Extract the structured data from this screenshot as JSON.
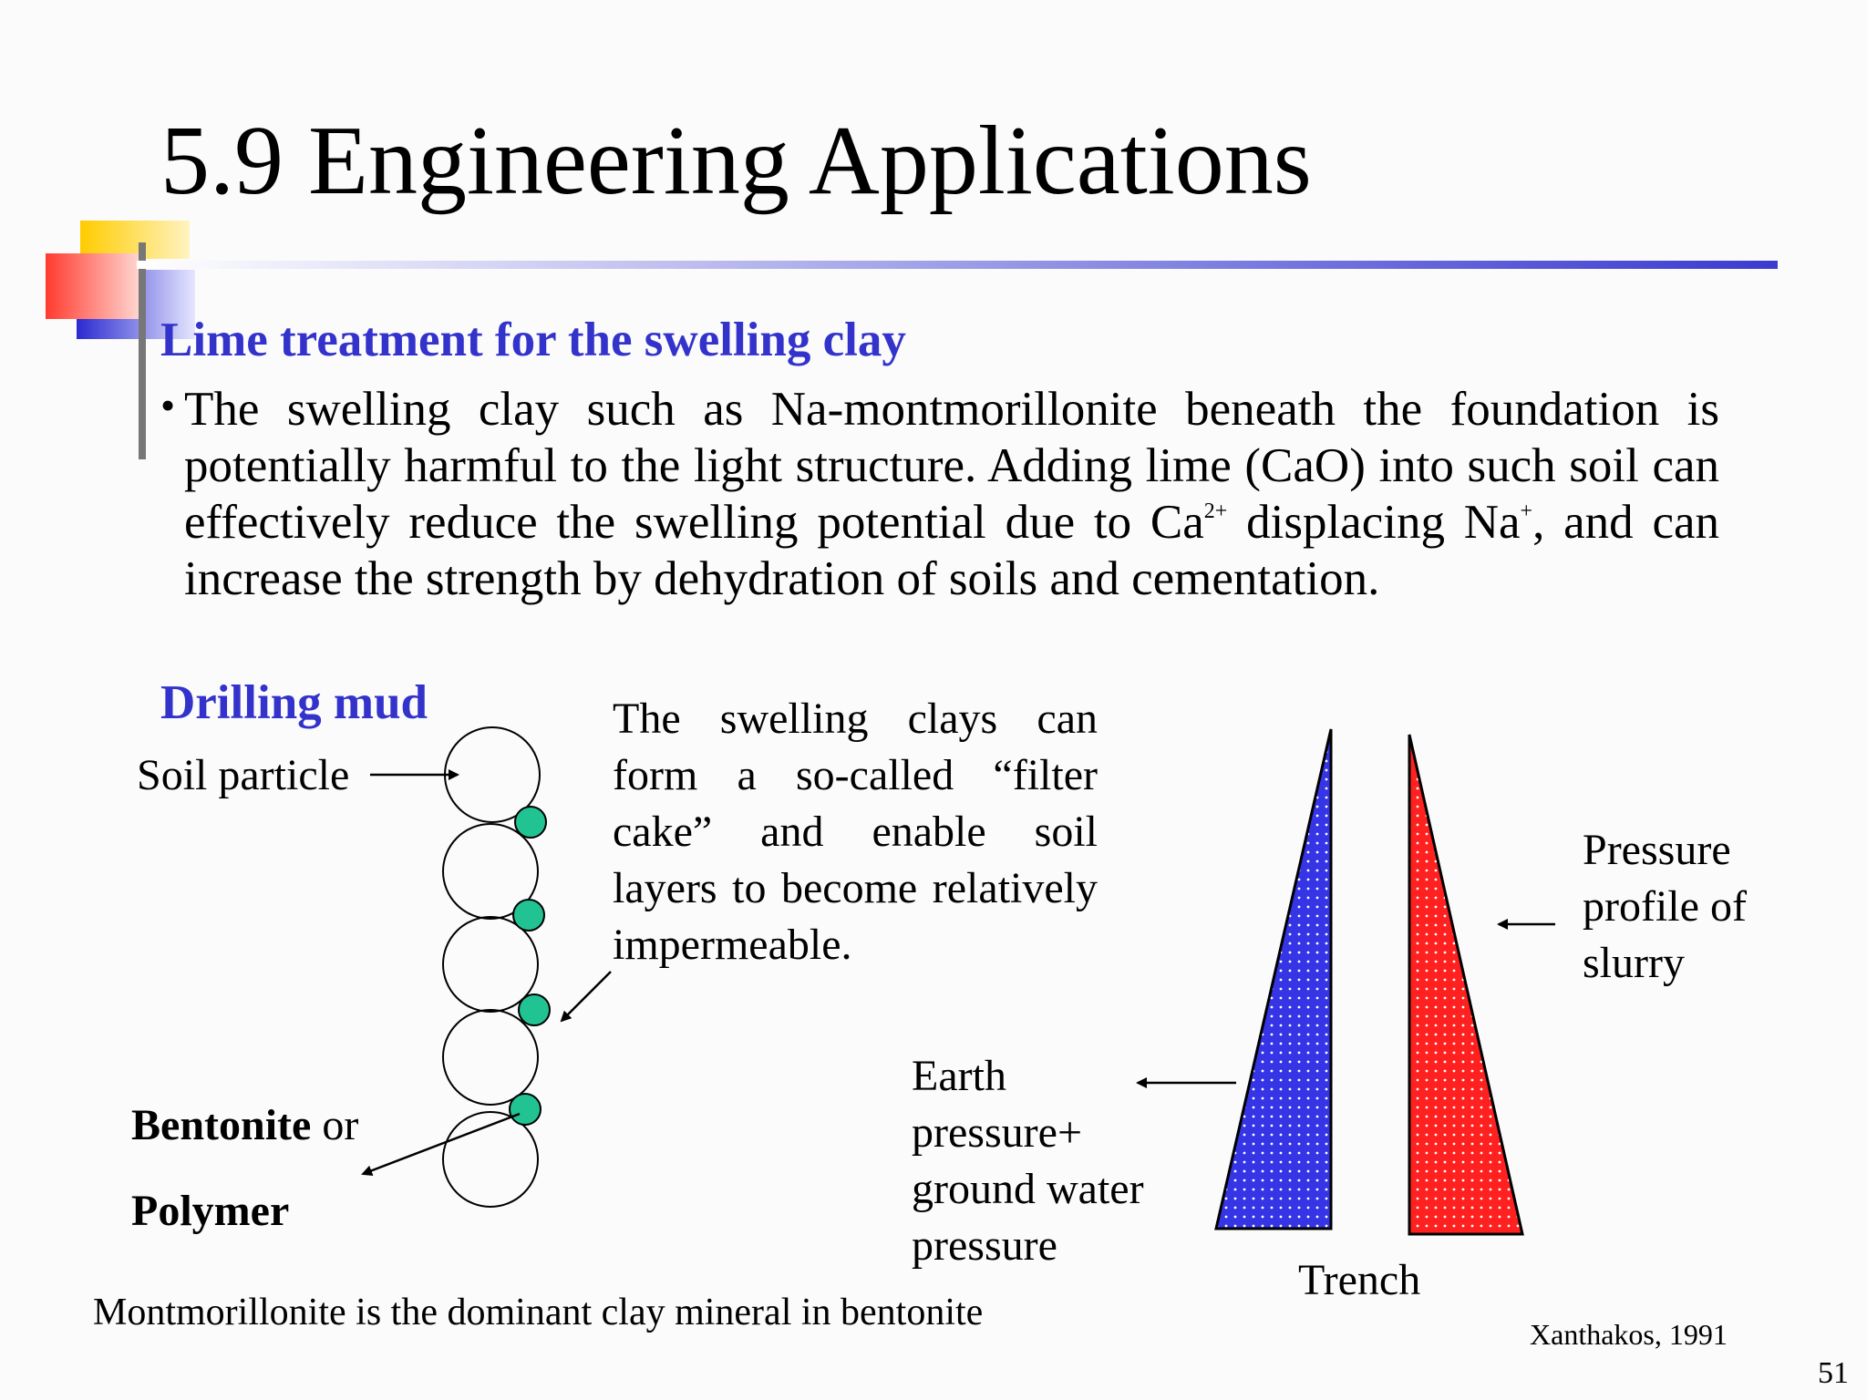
{
  "slide": {
    "title": "5.9 Engineering Applications",
    "page_number": "51",
    "colors": {
      "heading_accent": "#3333cc",
      "title_rule": "#3b3bd0",
      "deco_yellow": "#ffcc00",
      "deco_red": "#ff3b2e",
      "deco_blue": "#3333cc",
      "polymer_green": "#21c393",
      "earth_pressure_fill": "#3535e6",
      "slurry_pressure_fill": "#ff2020"
    }
  },
  "lime": {
    "heading": "Lime treatment for the swelling clay",
    "bullet_symbol": "•",
    "text_before_ca": "The swelling clay such as Na-montmorillonite beneath the foundation is potentially harmful to the light structure. Adding lime (CaO) into such soil can effectively reduce the swelling potential due to Ca",
    "ca_superscript": "2+",
    "text_after_ca": " displacing Na",
    "na_superscript": "+",
    "text_end": ", and can increase the strength by dehydration of soils and cementation."
  },
  "drilling": {
    "heading": "Drilling mud",
    "soil_particle_label": "Soil particle",
    "bentonite_bold": "Bentonite",
    "bentonite_or": " or",
    "polymer_label": "Polymer",
    "filter_cake_text": "The swelling clays can form a so-called “filter cake” and enable soil layers to become relatively impermeable.",
    "caption": "Montmorillonite is the dominant clay mineral in bentonite"
  },
  "trench": {
    "earth_label_lines": [
      "Earth",
      "pressure+",
      "ground water",
      "pressure"
    ],
    "slurry_label_lines": [
      "Pressure",
      "profile of",
      "slurry"
    ],
    "trench_label": "Trench",
    "citation": "Xanthakos, 1991"
  }
}
